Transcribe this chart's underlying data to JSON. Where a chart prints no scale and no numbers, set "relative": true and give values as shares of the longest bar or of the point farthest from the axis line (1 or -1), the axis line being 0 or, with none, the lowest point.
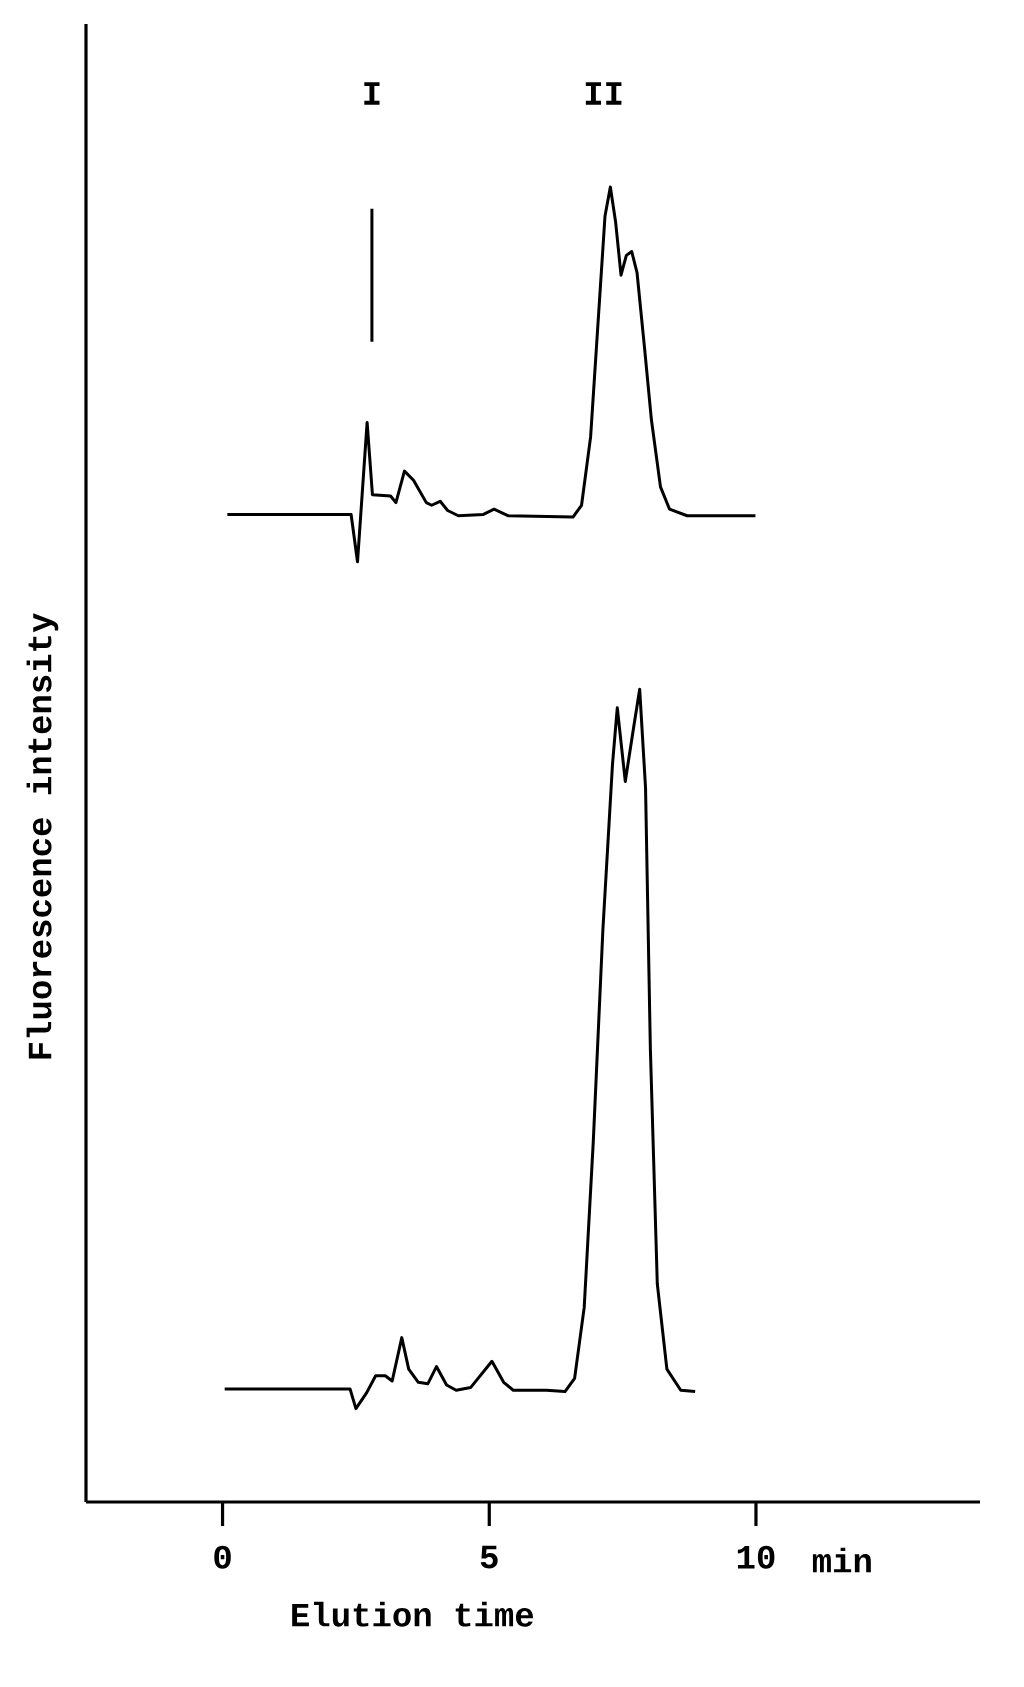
{
  "chart_data": {
    "type": "line",
    "relative": true,
    "xlabel": "Elution time",
    "ylabel": "Fluorescence intensity",
    "xlim": [
      -2.56,
      14.2
    ],
    "xticks": [
      0,
      5,
      10
    ],
    "annotations": [
      "II",
      "min"
    ],
    "ref_lines": [
      {
        "axis": "x",
        "value": 2.8,
        "label": "I"
      }
    ],
    "series": [
      {
        "color": "#000000",
        "x": [
          0.09,
          2.41,
          2.53,
          2.71,
          2.81,
          3.15,
          3.25,
          3.41,
          3.58,
          3.82,
          3.92,
          4.08,
          4.22,
          4.42,
          4.89,
          5.09,
          5.36,
          6.57,
          6.73,
          6.9,
          7.03,
          7.17,
          7.27,
          7.37,
          7.47,
          7.57,
          7.67,
          7.77,
          7.91,
          8.04,
          8.21,
          8.38,
          8.71,
          9.99
        ],
        "values": [
          0.751,
          0.751,
          0.715,
          0.821,
          0.766,
          0.765,
          0.76,
          0.784,
          0.777,
          0.76,
          0.758,
          0.761,
          0.754,
          0.75,
          0.751,
          0.755,
          0.75,
          0.749,
          0.758,
          0.81,
          0.891,
          0.978,
          1.0,
          0.973,
          0.933,
          0.948,
          0.951,
          0.935,
          0.878,
          0.823,
          0.772,
          0.755,
          0.75,
          0.75
        ]
      },
      {
        "color": "#000000",
        "x": [
          0.04,
          2.39,
          2.5,
          2.7,
          2.87,
          3.05,
          3.18,
          3.36,
          3.49,
          3.67,
          3.85,
          4.01,
          4.2,
          4.38,
          4.65,
          5.05,
          5.27,
          5.45,
          6.07,
          6.42,
          6.6,
          6.78,
          6.95,
          7.13,
          7.31,
          7.4,
          7.55,
          7.71,
          7.82,
          7.93,
          8.02,
          8.15,
          8.33,
          8.59,
          8.86
        ],
        "values": [
          0.086,
          0.086,
          0.071,
          0.083,
          0.096,
          0.096,
          0.092,
          0.125,
          0.101,
          0.091,
          0.09,
          0.103,
          0.089,
          0.085,
          0.087,
          0.107,
          0.091,
          0.085,
          0.085,
          0.084,
          0.094,
          0.148,
          0.274,
          0.435,
          0.561,
          0.604,
          0.548,
          0.59,
          0.618,
          0.543,
          0.345,
          0.166,
          0.101,
          0.085,
          0.084
        ]
      }
    ]
  }
}
